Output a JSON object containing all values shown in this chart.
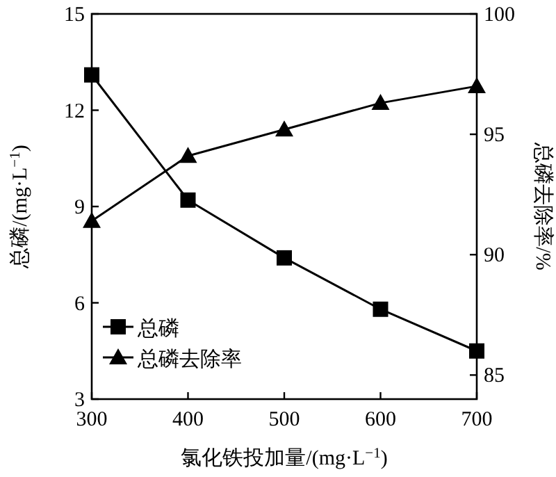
{
  "chart_data": {
    "type": "line",
    "xlabel": "氯化铁投加量/(mg·L$^{−1}$)",
    "ylabel": "总磷/(mg·L$^{−1}$)",
    "y2label": "总磷去除率/%",
    "x": [
      300,
      400,
      500,
      600,
      700
    ],
    "xlim": [
      300,
      700
    ],
    "xticks": [
      300,
      400,
      500,
      600,
      700
    ],
    "ylim": [
      3,
      15
    ],
    "yticks": [
      3,
      6,
      9,
      12,
      15
    ],
    "y2lim": [
      84,
      100
    ],
    "y2ticks": [
      85,
      90,
      95,
      100
    ],
    "legend": "bottom left",
    "grid": false,
    "series": [
      {
        "name": "总磷",
        "color": "#000000",
        "marker": "square",
        "values": [
          13.1,
          9.2,
          7.4,
          5.8,
          4.5
        ]
      },
      {
        "name": "总磷去除率",
        "color": "#000000",
        "marker": "triangle",
        "axis": "y2",
        "values": [
          91.4,
          94.1,
          95.2,
          96.3,
          97.0
        ]
      }
    ]
  }
}
